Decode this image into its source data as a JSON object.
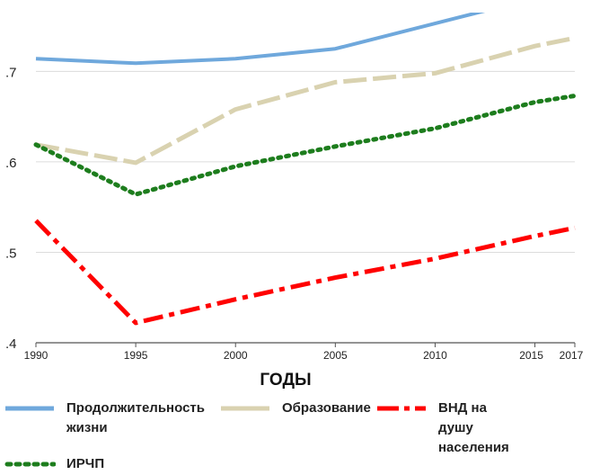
{
  "chart_data": {
    "type": "line",
    "x": [
      1990,
      1995,
      2000,
      2005,
      2010,
      2015,
      2017
    ],
    "x_tick_labels": [
      "1990",
      "1995",
      "2000",
      "2005",
      "2010",
      "2015",
      "2017"
    ],
    "y_tick_labels": [
      ".4",
      ".5",
      ".6",
      ".7"
    ],
    "y_ticks": [
      0.4,
      0.5,
      0.6,
      0.7
    ],
    "ylim": [
      0.4,
      0.765
    ],
    "xlabel": "ГОДЫ",
    "ylabel": "",
    "grid": "horizontal",
    "series": [
      {
        "name": "Продолжительность жизни",
        "color": "#6fa8dc",
        "style": "solid",
        "values": [
          0.714,
          0.709,
          0.714,
          0.725,
          0.753,
          0.781,
          0.79
        ]
      },
      {
        "name": "Образование",
        "color": "#d9d2b0",
        "style": "dash",
        "values": [
          0.619,
          0.599,
          0.658,
          0.688,
          0.698,
          0.728,
          0.737
        ]
      },
      {
        "name": "ИРЧП",
        "color": "#1d7d1d",
        "style": "dot",
        "values": [
          0.619,
          0.564,
          0.595,
          0.617,
          0.637,
          0.666,
          0.673
        ]
      },
      {
        "name": "ВНД на душу населения",
        "color": "#ff0000",
        "style": "dashdot",
        "values": [
          0.535,
          0.422,
          0.448,
          0.472,
          0.493,
          0.518,
          0.527
        ]
      }
    ]
  },
  "legend": {
    "items": [
      {
        "label": "Продолжительность\nжизни",
        "color": "#6fa8dc",
        "style": "solid"
      },
      {
        "label": "Образование",
        "color": "#d9d2b0",
        "style": "dash"
      },
      {
        "label": "ВНД на душу\nнаселения",
        "color": "#ff0000",
        "style": "dashdot"
      },
      {
        "label": "ИРЧП",
        "color": "#1d7d1d",
        "style": "dot"
      }
    ]
  }
}
